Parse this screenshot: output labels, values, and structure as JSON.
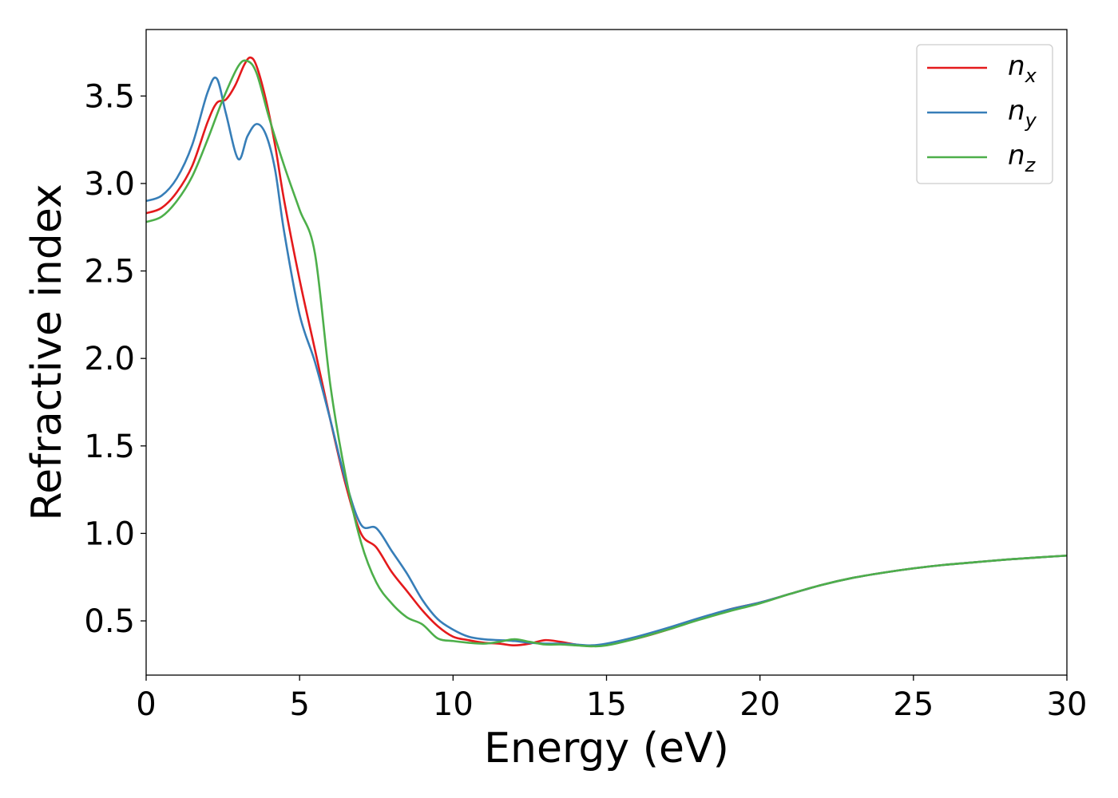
{
  "chart_data": {
    "type": "line",
    "title": "",
    "xlabel": "Energy (eV)",
    "ylabel": "Refractive index",
    "xlim": [
      0,
      30
    ],
    "ylim": [
      0.19,
      3.88
    ],
    "xticks": [
      0,
      5,
      10,
      15,
      20,
      25,
      30
    ],
    "xtick_labels": [
      "0",
      "5",
      "10",
      "15",
      "20",
      "25",
      "30"
    ],
    "yticks": [
      0.5,
      1.0,
      1.5,
      2.0,
      2.5,
      3.0,
      3.5
    ],
    "ytick_labels": [
      "0.5",
      "1.0",
      "1.5",
      "2.0",
      "2.5",
      "3.0",
      "3.5"
    ],
    "grid": false,
    "legend_position": "top-right",
    "series": [
      {
        "name": "n_x",
        "label_base": "n",
        "label_sub": "x",
        "color": "#e41a1c",
        "x": [
          0,
          0.5,
          1.0,
          1.5,
          2.0,
          2.3,
          2.6,
          2.9,
          3.2,
          3.4,
          3.6,
          3.9,
          4.2,
          4.5,
          5.0,
          5.5,
          6.0,
          6.5,
          7.0,
          7.5,
          8.0,
          8.5,
          9.0,
          9.5,
          10.0,
          10.5,
          11.0,
          11.5,
          12.0,
          12.5,
          13.0,
          13.5,
          14.0,
          14.5,
          15.0,
          16.0,
          17.0,
          18.0,
          19.0,
          20.0,
          21.0,
          22.0,
          23.0,
          24.0,
          25.0,
          26.0,
          27.0,
          28.0,
          29.0,
          30.0
        ],
        "y": [
          2.83,
          2.86,
          2.95,
          3.1,
          3.35,
          3.46,
          3.48,
          3.56,
          3.68,
          3.72,
          3.67,
          3.48,
          3.22,
          2.9,
          2.45,
          2.05,
          1.65,
          1.28,
          1.0,
          0.92,
          0.78,
          0.67,
          0.56,
          0.47,
          0.41,
          0.39,
          0.375,
          0.37,
          0.36,
          0.37,
          0.39,
          0.38,
          0.365,
          0.355,
          0.365,
          0.4,
          0.45,
          0.51,
          0.565,
          0.605,
          0.655,
          0.705,
          0.745,
          0.775,
          0.8,
          0.82,
          0.835,
          0.85,
          0.862,
          0.873
        ]
      },
      {
        "name": "n_y",
        "label_base": "n",
        "label_sub": "y",
        "color": "#377eb8",
        "x": [
          0,
          0.5,
          1.0,
          1.5,
          2.0,
          2.3,
          2.6,
          3.0,
          3.3,
          3.6,
          3.9,
          4.2,
          4.5,
          5.0,
          5.5,
          6.0,
          6.5,
          7.0,
          7.5,
          8.0,
          8.5,
          9.0,
          9.5,
          10.0,
          10.5,
          11.0,
          11.5,
          12.0,
          12.5,
          13.0,
          13.5,
          14.0,
          14.5,
          15.0,
          16.0,
          17.0,
          18.0,
          19.0,
          20.0,
          21.0,
          22.0,
          23.0,
          24.0,
          25.0,
          26.0,
          27.0,
          28.0,
          29.0,
          30.0
        ],
        "y": [
          2.9,
          2.93,
          3.03,
          3.22,
          3.52,
          3.6,
          3.4,
          3.14,
          3.27,
          3.34,
          3.28,
          3.08,
          2.72,
          2.25,
          1.98,
          1.65,
          1.3,
          1.05,
          1.03,
          0.9,
          0.77,
          0.62,
          0.51,
          0.45,
          0.41,
          0.395,
          0.39,
          0.385,
          0.375,
          0.37,
          0.37,
          0.365,
          0.36,
          0.37,
          0.41,
          0.46,
          0.515,
          0.565,
          0.605,
          0.655,
          0.705,
          0.745,
          0.775,
          0.8,
          0.82,
          0.835,
          0.85,
          0.862,
          0.873
        ]
      },
      {
        "name": "n_z",
        "label_base": "n",
        "label_sub": "z",
        "color": "#4daf4a",
        "x": [
          0,
          0.5,
          1.0,
          1.5,
          2.0,
          2.5,
          3.0,
          3.3,
          3.6,
          4.0,
          4.5,
          5.0,
          5.5,
          6.0,
          6.5,
          7.0,
          7.5,
          8.0,
          8.5,
          9.0,
          9.5,
          10.0,
          10.5,
          11.0,
          11.5,
          12.0,
          12.5,
          13.0,
          13.5,
          14.0,
          14.5,
          15.0,
          16.0,
          17.0,
          18.0,
          19.0,
          20.0,
          21.0,
          22.0,
          23.0,
          24.0,
          25.0,
          26.0,
          27.0,
          28.0,
          29.0,
          30.0
        ],
        "y": [
          2.78,
          2.81,
          2.9,
          3.04,
          3.25,
          3.48,
          3.67,
          3.7,
          3.63,
          3.38,
          3.1,
          2.85,
          2.6,
          1.85,
          1.33,
          0.95,
          0.72,
          0.6,
          0.52,
          0.48,
          0.4,
          0.385,
          0.375,
          0.37,
          0.38,
          0.395,
          0.38,
          0.365,
          0.365,
          0.36,
          0.355,
          0.36,
          0.4,
          0.45,
          0.505,
          0.555,
          0.6,
          0.655,
          0.705,
          0.745,
          0.775,
          0.8,
          0.82,
          0.835,
          0.85,
          0.862,
          0.873
        ]
      }
    ]
  }
}
